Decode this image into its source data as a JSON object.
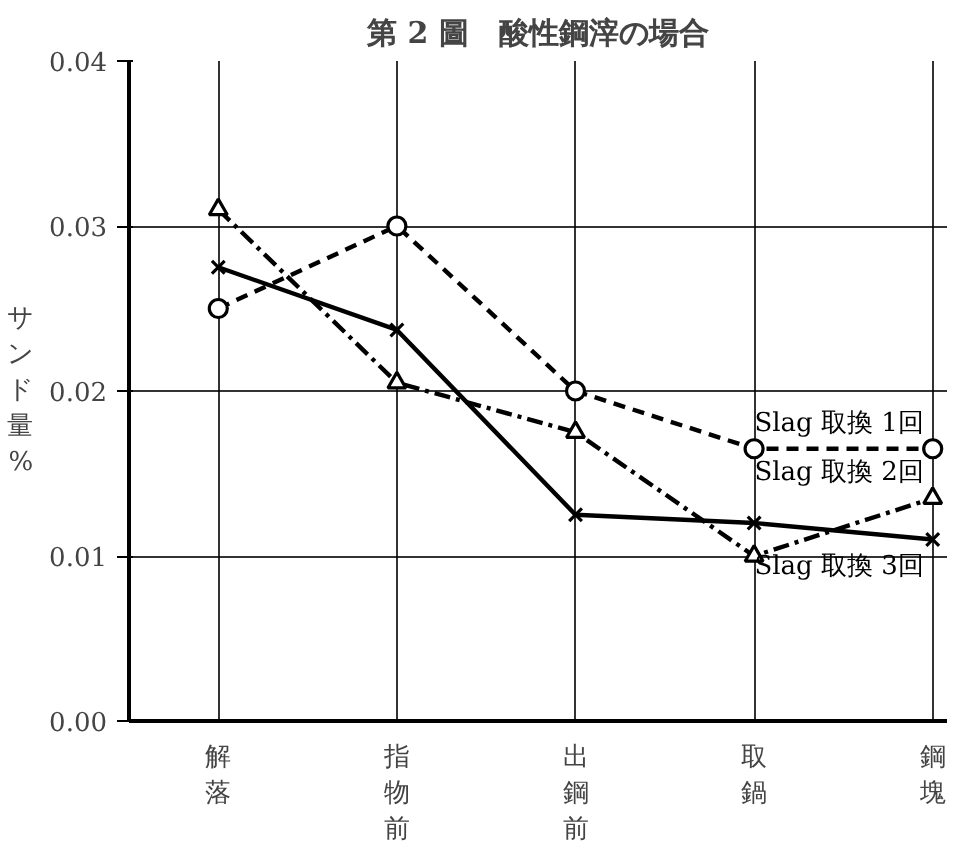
{
  "chart_data": {
    "type": "line",
    "title": "第 2 圖　酸性鋼滓の場合",
    "ylabel": "サンド量%",
    "categories": [
      "解落",
      "指物前",
      "出鋼前",
      "取鍋",
      "鋼塊"
    ],
    "series": [
      {
        "name": "Slag 取換 1回",
        "color": "#000000",
        "marker": "circle",
        "line_style": "dashed",
        "values": [
          0.025,
          0.03,
          0.02,
          0.0165,
          0.0165
        ]
      },
      {
        "name": "Slag 取換 2回",
        "color": "#000000",
        "marker": "triangle",
        "line_style": "dashdot",
        "values": [
          0.031,
          0.0205,
          0.0175,
          0.01,
          0.0135
        ]
      },
      {
        "name": "Slag 取換 3回",
        "color": "#000000",
        "marker": "cross",
        "line_style": "solid",
        "values": [
          0.0275,
          0.0237,
          0.0125,
          0.012,
          0.011
        ]
      }
    ],
    "ylim": [
      0,
      0.04
    ],
    "yticks": [
      {
        "value": 0,
        "label": "0.00"
      },
      0.01,
      0.02,
      0.03,
      0.04
    ],
    "grid": true
  }
}
